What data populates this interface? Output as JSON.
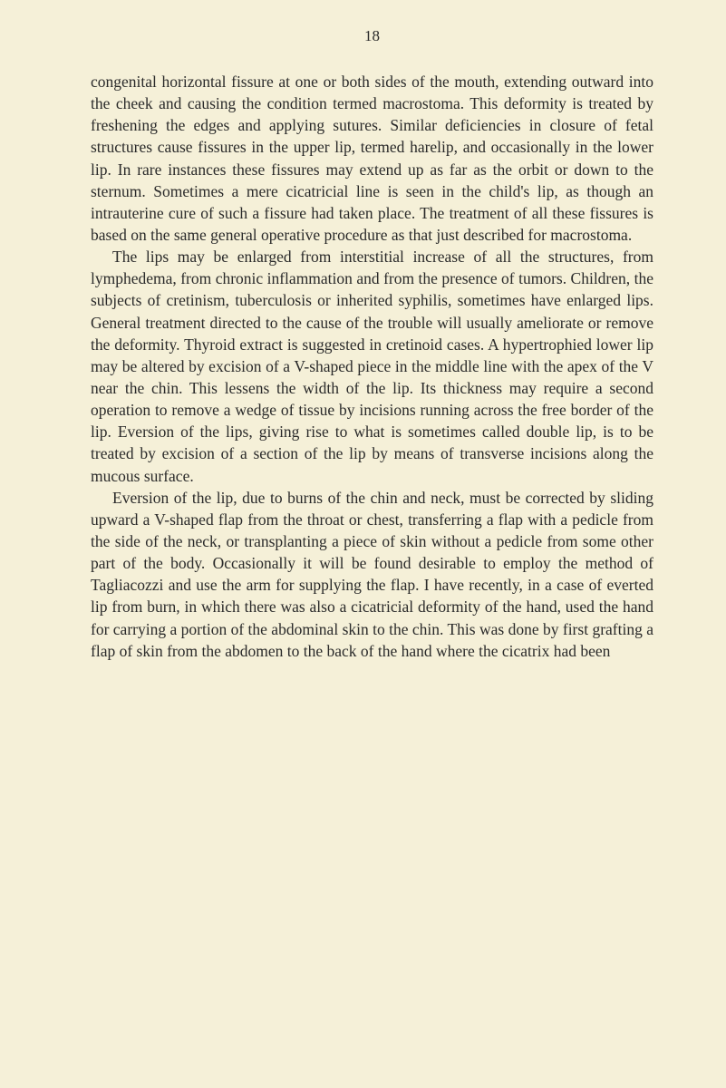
{
  "page_number": "18",
  "paragraphs": [
    {
      "indented": false,
      "text": "congenital horizontal fissure at one or both sides of the mouth, extending outward into the cheek and causing the condition termed macrostoma. This deformity is treated by freshening the edges and applying sutures. Similar deficiencies in closure of fetal structures cause fissures in the upper lip, termed harelip, and occasionally in the lower lip. In rare instances these fissures may extend up as far as the orbit or down to the sternum. Sometimes a mere cicatricial line is seen in the child's lip, as though an intrauterine cure of such a fissure had taken place. The treatment of all these fissures is based on the same general operative procedure as that just described for macrostoma."
    },
    {
      "indented": true,
      "text": "The lips may be enlarged from interstitial increase of all the structures, from lymphedema, from chronic inflammation and from the presence of tumors. Children, the subjects of cretinism, tuberculosis or inherited syphilis, sometimes have enlarged lips. General treatment directed to the cause of the trouble will usually ameliorate or remove the deformity. Thyroid extract is suggested in cretinoid cases. A hypertrophied lower lip may be altered by excision of a V-shaped piece in the middle line with the apex of the V near the chin. This lessens the width of the lip. Its thickness may require a second operation to remove a wedge of tissue by incisions running across the free border of the lip. Eversion of the lips, giving rise to what is sometimes called double lip, is to be treated by excision of a section of the lip by means of transverse incisions along the mucous surface."
    },
    {
      "indented": true,
      "text": "Eversion of the lip, due to burns of the chin and neck, must be corrected by sliding upward a V-shaped flap from the throat or chest, transferring a flap with a pedicle from the side of the neck, or transplanting a piece of skin without a pedicle from some other part of the body. Occasionally it will be found desirable to employ the method of Tagliacozzi and use the arm for supplying the flap. I have recently, in a case of everted lip from burn, in which there was also a cicatricial deformity of the hand, used the hand for carrying a portion of the abdominal skin to the chin. This was done by first grafting a flap of skin from the abdomen to the back of the hand where the cicatrix had been"
    }
  ],
  "colors": {
    "background": "#f5f0d8",
    "text": "#2a2a2a"
  },
  "typography": {
    "body_fontsize": 17.5,
    "page_number_fontsize": 17,
    "line_height": 1.38,
    "font_family": "Georgia"
  }
}
